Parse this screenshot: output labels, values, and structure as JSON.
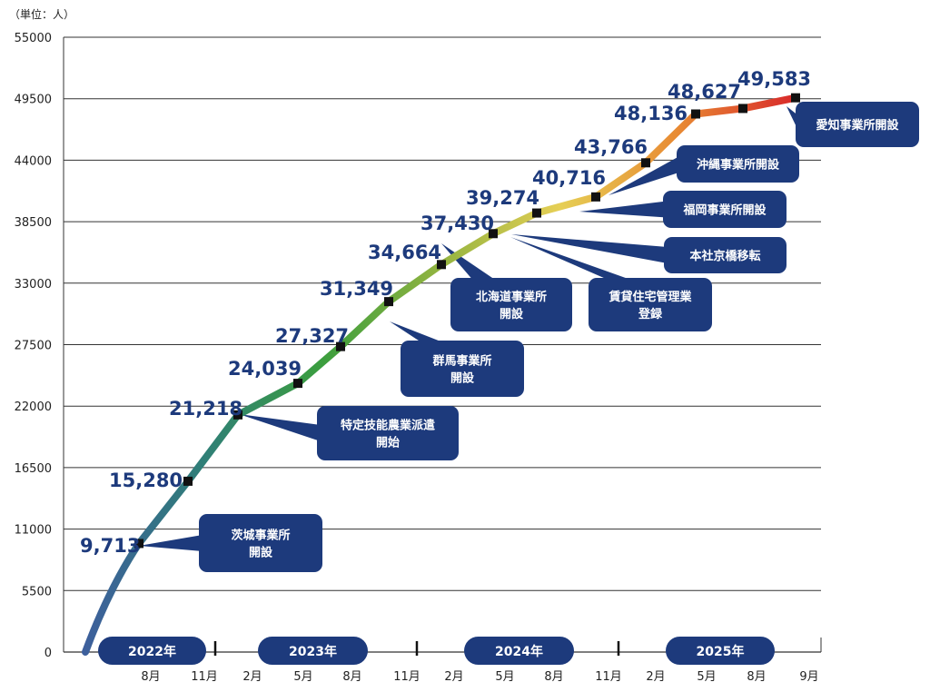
{
  "unit_label": "（単位：人）",
  "colors": {
    "label": "#1d3a7c",
    "callout": "#1d3a7c",
    "grid": "#333333",
    "line_gradient": [
      "#3d5f9c",
      "#2f7f77",
      "#3b9e3e",
      "#93b440",
      "#e6cf55",
      "#e88a33",
      "#d8282a"
    ]
  },
  "chart_data": {
    "type": "line",
    "title": "",
    "xlabel": "",
    "ylabel": "",
    "ylim": [
      0,
      55000
    ],
    "y_ticks": [
      "0",
      "5500",
      "11000",
      "16500",
      "22000",
      "27500",
      "33000",
      "38500",
      "44000",
      "49500",
      "55000"
    ],
    "grid": "horizontal",
    "x_ticks": [
      "8月",
      "11月",
      "2月",
      "5月",
      "8月",
      "11月",
      "2月",
      "5月",
      "8月",
      "11月",
      "2月",
      "5月",
      "8月",
      "9月"
    ],
    "years": [
      "2022年",
      "2023年",
      "2024年",
      "2025年"
    ],
    "series": [
      {
        "values": [
          9713,
          15280,
          21218,
          24039,
          27327,
          31349,
          34664,
          37430,
          39274,
          40716,
          43766,
          48136,
          48627,
          49583
        ],
        "labels": [
          "9,713",
          "15,280",
          "21,218",
          "24,039",
          "27,327",
          "31,349",
          "34,664",
          "37,430",
          "39,274",
          "40,716",
          "43,766",
          "48,136",
          "48,627",
          "49,583"
        ]
      }
    ],
    "annotations": [
      {
        "lines": [
          "茨城事業所",
          "開設"
        ]
      },
      {
        "lines": [
          "特定技能農業派遣",
          "開始"
        ]
      },
      {
        "lines": [
          "群馬事業所",
          "開設"
        ]
      },
      {
        "lines": [
          "北海道事業所",
          "開設"
        ]
      },
      {
        "lines": [
          "賃貸住宅管理業",
          "登録"
        ]
      },
      {
        "lines": [
          "本社京橋移転"
        ]
      },
      {
        "lines": [
          "福岡事業所開設"
        ]
      },
      {
        "lines": [
          "沖縄事業所開設"
        ]
      },
      {
        "lines": [
          "愛知事業所開設"
        ]
      }
    ]
  }
}
